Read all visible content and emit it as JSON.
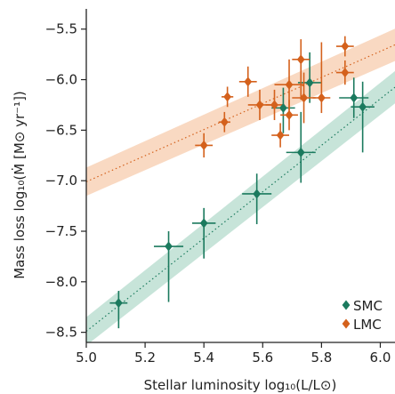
{
  "chart_data": {
    "type": "scatter",
    "title": "",
    "xlabel": "Stellar luminosity log₁₀(L/L⊙)",
    "ylabel": "Mass loss log₁₀(Ṁ [M⊙ yr⁻¹])",
    "xlim": [
      5.0,
      6.05
    ],
    "ylim": [
      -8.6,
      -5.3
    ],
    "xticks": [
      "5.0",
      "5.2",
      "5.4",
      "5.6",
      "5.8",
      "6.0"
    ],
    "yticks": [
      "−5.5",
      "−6.0",
      "−6.5",
      "−7.0",
      "−7.5",
      "−8.0",
      "−8.5"
    ],
    "legend_position": "bottom-right",
    "series": [
      {
        "name": "SMC",
        "color": "#1b7a5e",
        "band_color": "#a9d6c5",
        "marker": "diamond",
        "fit": {
          "slope": 2.3,
          "intercept": -19.99
        },
        "points": [
          {
            "x": 5.11,
            "y": -8.21,
            "xerr": 0.03,
            "yerr_lo": 0.25,
            "yerr_hi": 0.12
          },
          {
            "x": 5.28,
            "y": -7.65,
            "xerr": 0.05,
            "yerr_lo": 0.55,
            "yerr_hi": 0.15
          },
          {
            "x": 5.4,
            "y": -7.42,
            "xerr": 0.04,
            "yerr_lo": 0.35,
            "yerr_hi": 0.15
          },
          {
            "x": 5.58,
            "y": -7.13,
            "xerr": 0.05,
            "yerr_lo": 0.3,
            "yerr_hi": 0.2
          },
          {
            "x": 5.73,
            "y": -6.72,
            "xerr": 0.05,
            "yerr_lo": 0.3,
            "yerr_hi": 0.4
          },
          {
            "x": 5.67,
            "y": -6.28,
            "xerr": 0.04,
            "yerr_lo": 0.25,
            "yerr_hi": 0.2
          },
          {
            "x": 5.76,
            "y": -6.03,
            "xerr": 0.04,
            "yerr_lo": 0.2,
            "yerr_hi": 0.3
          },
          {
            "x": 5.91,
            "y": -6.18,
            "xerr": 0.05,
            "yerr_lo": 0.2,
            "yerr_hi": 0.2
          },
          {
            "x": 5.94,
            "y": -6.27,
            "xerr": 0.04,
            "yerr_lo": 0.45,
            "yerr_hi": 0.25
          }
        ]
      },
      {
        "name": "LMC",
        "color": "#d4611c",
        "band_color": "#f6c4a2",
        "marker": "diamond",
        "fit": {
          "slope": 1.29,
          "intercept": -13.46
        },
        "points": [
          {
            "x": 5.4,
            "y": -6.65,
            "xerr": 0.03,
            "yerr_lo": 0.12,
            "yerr_hi": 0.12
          },
          {
            "x": 5.47,
            "y": -6.42,
            "xerr": 0.02,
            "yerr_lo": 0.1,
            "yerr_hi": 0.1
          },
          {
            "x": 5.48,
            "y": -6.17,
            "xerr": 0.02,
            "yerr_lo": 0.1,
            "yerr_hi": 0.1
          },
          {
            "x": 5.55,
            "y": -6.02,
            "xerr": 0.03,
            "yerr_lo": 0.15,
            "yerr_hi": 0.15
          },
          {
            "x": 5.59,
            "y": -6.25,
            "xerr": 0.04,
            "yerr_lo": 0.15,
            "yerr_hi": 0.15
          },
          {
            "x": 5.64,
            "y": -6.25,
            "xerr": 0.03,
            "yerr_lo": 0.15,
            "yerr_hi": 0.15
          },
          {
            "x": 5.66,
            "y": -6.55,
            "xerr": 0.03,
            "yerr_lo": 0.12,
            "yerr_hi": 0.12
          },
          {
            "x": 5.69,
            "y": -6.35,
            "xerr": 0.03,
            "yerr_lo": 0.15,
            "yerr_hi": 0.15
          },
          {
            "x": 5.69,
            "y": -6.05,
            "xerr": 0.05,
            "yerr_lo": 0.25,
            "yerr_hi": 0.25
          },
          {
            "x": 5.73,
            "y": -5.8,
            "xerr": 0.03,
            "yerr_lo": 0.4,
            "yerr_hi": 0.2
          },
          {
            "x": 5.74,
            "y": -6.18,
            "xerr": 0.04,
            "yerr_lo": 0.25,
            "yerr_hi": 0.25
          },
          {
            "x": 5.8,
            "y": -6.18,
            "xerr": 0.03,
            "yerr_lo": 0.15,
            "yerr_hi": 0.55
          },
          {
            "x": 5.88,
            "y": -5.93,
            "xerr": 0.03,
            "yerr_lo": 0.12,
            "yerr_hi": 0.12
          },
          {
            "x": 5.88,
            "y": -5.67,
            "xerr": 0.03,
            "yerr_lo": 0.1,
            "yerr_hi": 0.1
          }
        ]
      }
    ]
  }
}
